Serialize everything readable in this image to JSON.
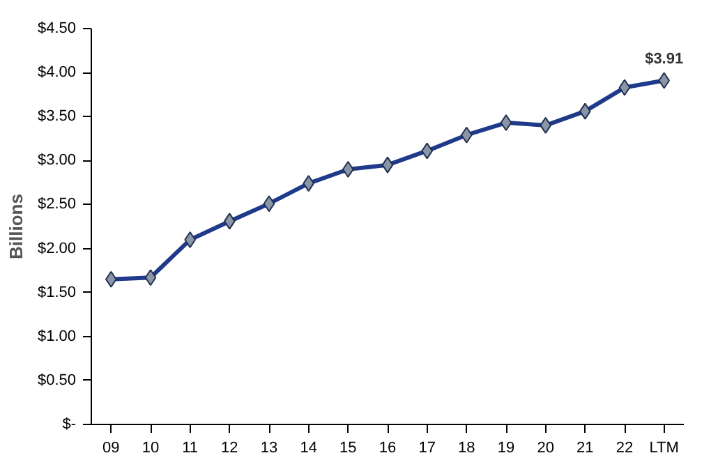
{
  "chart_data": {
    "type": "line",
    "ylabel": "Billions",
    "categories": [
      "09",
      "10",
      "11",
      "12",
      "13",
      "14",
      "15",
      "16",
      "17",
      "18",
      "19",
      "20",
      "21",
      "22",
      "LTM"
    ],
    "series": [
      {
        "color": "#1f3a8a",
        "values": [
          1.65,
          1.67,
          2.1,
          2.31,
          2.51,
          2.74,
          2.9,
          2.95,
          3.11,
          3.29,
          3.43,
          3.4,
          3.56,
          3.83,
          3.91
        ],
        "value_labels": [
          null,
          null,
          null,
          null,
          null,
          null,
          null,
          null,
          null,
          null,
          null,
          null,
          null,
          null,
          "$3.91"
        ]
      }
    ],
    "ylim": [
      0,
      4.5
    ],
    "yticks": [
      {
        "value": 0,
        "label": "$-"
      },
      {
        "value": 0.5,
        "label": "$0.50"
      },
      {
        "value": 1,
        "label": "$1.00"
      },
      {
        "value": 1.5,
        "label": "$1.50"
      },
      {
        "value": 2,
        "label": "$2.00"
      },
      {
        "value": 2.5,
        "label": "$2.50"
      },
      {
        "value": 3,
        "label": "$3.00"
      },
      {
        "value": 3.5,
        "label": "$3.50"
      },
      {
        "value": 4,
        "label": "$4.00"
      },
      {
        "value": 4.5,
        "label": "$4.50"
      }
    ],
    "marker": "diamond",
    "line_style": "solid",
    "grid": false
  }
}
